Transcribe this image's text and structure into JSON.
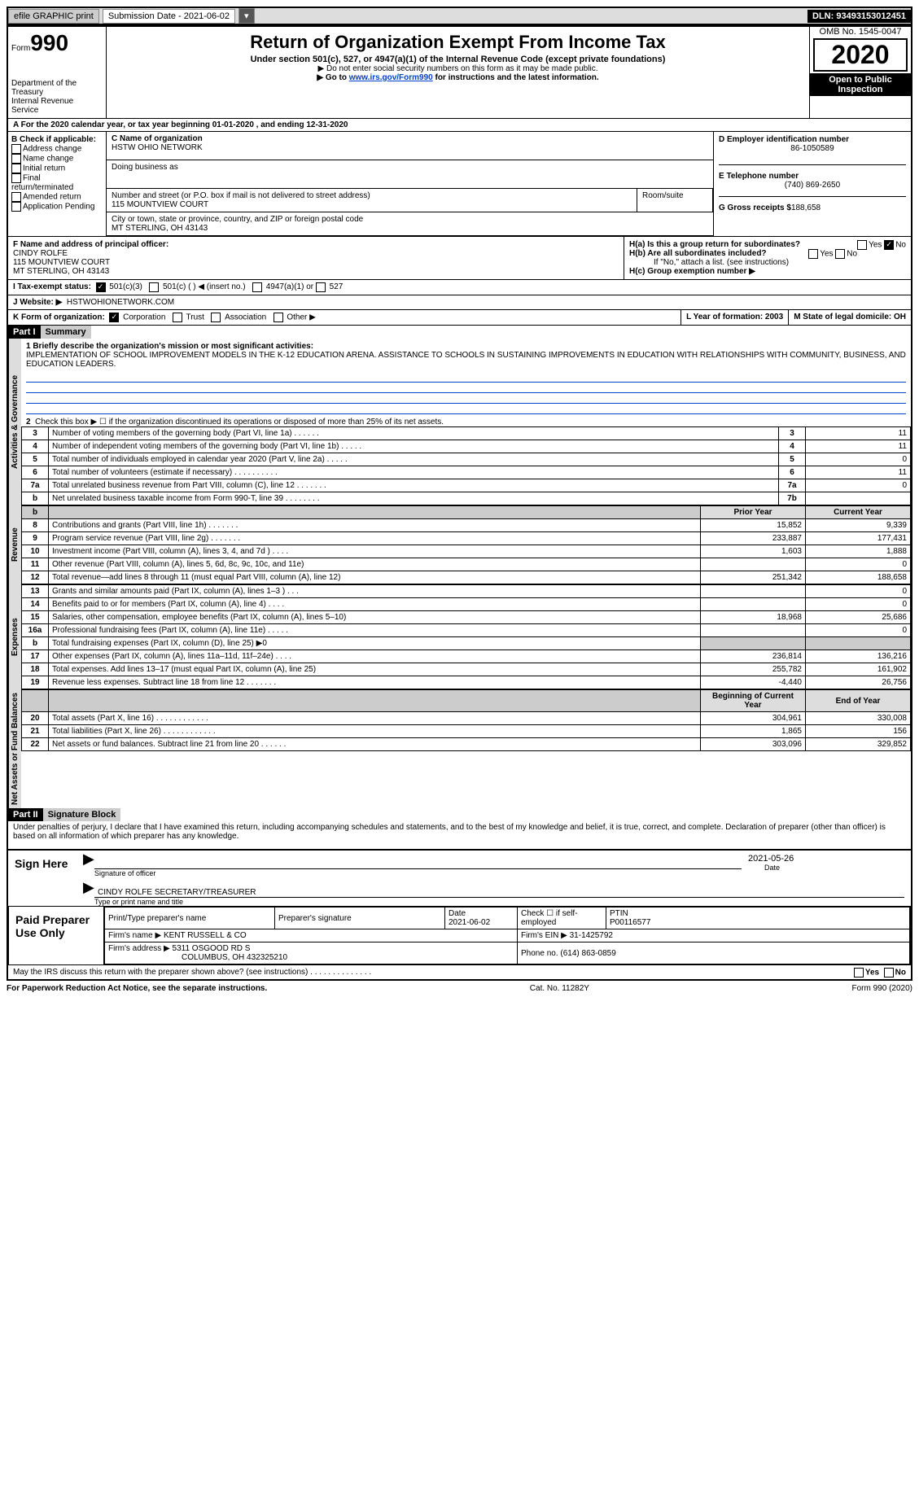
{
  "toolbar": {
    "efile_label": "efile GRAPHIC print",
    "submission_label": "Submission Date - 2021-06-02",
    "dln": "DLN: 93493153012451"
  },
  "header": {
    "form_label": "Form",
    "form_number": "990",
    "title": "Return of Organization Exempt From Income Tax",
    "subtitle": "Under section 501(c), 527, or 4947(a)(1) of the Internal Revenue Code (except private foundations)",
    "note1": "▶ Do not enter social security numbers on this form as it may be made public.",
    "note2_prefix": "▶ Go to ",
    "note2_link": "www.irs.gov/Form990",
    "note2_suffix": " for instructions and the latest information.",
    "dept": "Department of the Treasury\nInternal Revenue Service",
    "omb": "OMB No. 1545-0047",
    "year": "2020",
    "open": "Open to Public Inspection"
  },
  "line_a": "For the 2020 calendar year, or tax year beginning 01-01-2020   , and ending 12-31-2020",
  "section_b": {
    "label": "B Check if applicable:",
    "items": [
      "Address change",
      "Name change",
      "Initial return",
      "Final return/terminated",
      "Amended return",
      "Application pending"
    ],
    "last": "Application Pending"
  },
  "section_c": {
    "name_label": "C Name of organization",
    "name": "HSTW OHIO NETWORK",
    "dba_label": "Doing business as",
    "addr_label": "Number and street (or P.O. box if mail is not delivered to street address)",
    "room_label": "Room/suite",
    "addr": "115 MOUNTVIEW COURT",
    "city_label": "City or town, state or province, country, and ZIP or foreign postal code",
    "city": "MT STERLING, OH  43143"
  },
  "section_d": {
    "label": "D Employer identification number",
    "value": "86-1050589"
  },
  "section_e": {
    "label": "E Telephone number",
    "value": "(740) 869-2650"
  },
  "section_g": {
    "label": "G Gross receipts $",
    "value": "188,658"
  },
  "section_f": {
    "label": "F  Name and address of principal officer:",
    "name": "CINDY ROLFE",
    "addr1": "115 MOUNTVIEW COURT",
    "addr2": "MT STERLING, OH  43143"
  },
  "section_h": {
    "ha": "H(a)  Is this a group return for subordinates?",
    "hb": "H(b)  Are all subordinates included?",
    "hb_note": "If \"No,\" attach a list. (see instructions)",
    "hc": "H(c)  Group exemption number ▶",
    "yes": "Yes",
    "no": "No"
  },
  "section_i": {
    "label": "I    Tax-exempt status:",
    "opts": [
      "501(c)(3)",
      "501(c) (  ) ◀ (insert no.)",
      "4947(a)(1) or",
      "527"
    ]
  },
  "section_j": {
    "label": "J   Website: ▶",
    "value": "HSTWOHIONETWORK.COM"
  },
  "section_k": {
    "label": "K Form of organization:",
    "opts": [
      "Corporation",
      "Trust",
      "Association",
      "Other ▶"
    ]
  },
  "section_l": {
    "label": "L Year of formation: 2003"
  },
  "section_m": {
    "label": "M State of legal domicile: OH"
  },
  "part1": {
    "hdr": "Part I",
    "title": "Summary",
    "q1": "1  Briefly describe the organization's mission or most significant activities:",
    "mission": "IMPLEMENTATION OF SCHOOL IMPROVEMENT MODELS IN THE K-12 EDUCATION ARENA. ASSISTANCE TO SCHOOLS IN SUSTAINING IMPROVEMENTS IN EDUCATION WITH RELATIONSHIPS WITH COMMUNITY, BUSINESS, AND EDUCATION LEADERS.",
    "q2": "Check this box ▶ ☐  if the organization discontinued its operations or disposed of more than 25% of its net assets.",
    "sections": {
      "gov": "Activities & Governance",
      "rev": "Revenue",
      "exp": "Expenses",
      "na": "Net Assets or Fund Balances"
    },
    "col_prior": "Prior Year",
    "col_curr": "Current Year",
    "col_beg": "Beginning of Current Year",
    "col_end": "End of Year",
    "lines": [
      {
        "n": "3",
        "d": "Number of voting members of the governing body (Part VI, line 1a)  .   .   .   .   .   .",
        "ln": "3",
        "v": "11"
      },
      {
        "n": "4",
        "d": "Number of independent voting members of the governing body (Part VI, line 1b)  .   .   .   .   .",
        "ln": "4",
        "v": "11"
      },
      {
        "n": "5",
        "d": "Total number of individuals employed in calendar year 2020 (Part V, line 2a)  .   .   .   .   .",
        "ln": "5",
        "v": "0"
      },
      {
        "n": "6",
        "d": "Total number of volunteers (estimate if necessary)  .   .   .   .   .   .   .   .   .   .",
        "ln": "6",
        "v": "11"
      },
      {
        "n": "7a",
        "d": "Total unrelated business revenue from Part VIII, column (C), line 12  .   .   .   .   .   .   .",
        "ln": "7a",
        "v": "0"
      },
      {
        "n": "b",
        "d": "Net unrelated business taxable income from Form 990-T, line 39  .   .   .   .   .   .   .   .",
        "ln": "7b",
        "v": ""
      }
    ],
    "rev_lines": [
      {
        "n": "8",
        "d": "Contributions and grants (Part VIII, line 1h)  .   .   .   .   .   .   .",
        "p": "15,852",
        "c": "9,339"
      },
      {
        "n": "9",
        "d": "Program service revenue (Part VIII, line 2g)  .   .   .   .   .   .   .",
        "p": "233,887",
        "c": "177,431"
      },
      {
        "n": "10",
        "d": "Investment income (Part VIII, column (A), lines 3, 4, and 7d )  .   .   .   .",
        "p": "1,603",
        "c": "1,888"
      },
      {
        "n": "11",
        "d": "Other revenue (Part VIII, column (A), lines 5, 6d, 8c, 9c, 10c, and 11e)",
        "p": "",
        "c": "0"
      },
      {
        "n": "12",
        "d": "Total revenue—add lines 8 through 11 (must equal Part VIII, column (A), line 12)",
        "p": "251,342",
        "c": "188,658"
      }
    ],
    "exp_lines": [
      {
        "n": "13",
        "d": "Grants and similar amounts paid (Part IX, column (A), lines 1–3 )  .   .   .",
        "p": "",
        "c": "0"
      },
      {
        "n": "14",
        "d": "Benefits paid to or for members (Part IX, column (A), line 4)  .   .   .   .",
        "p": "",
        "c": "0"
      },
      {
        "n": "15",
        "d": "Salaries, other compensation, employee benefits (Part IX, column (A), lines 5–10)",
        "p": "18,968",
        "c": "25,686"
      },
      {
        "n": "16a",
        "d": "Professional fundraising fees (Part IX, column (A), line 11e)  .   .   .   .   .",
        "p": "",
        "c": "0"
      },
      {
        "n": "b",
        "d": "Total fundraising expenses (Part IX, column (D), line 25) ▶0",
        "p": "shade",
        "c": "shade"
      },
      {
        "n": "17",
        "d": "Other expenses (Part IX, column (A), lines 11a–11d, 11f–24e)  .   .   .   .",
        "p": "236,814",
        "c": "136,216"
      },
      {
        "n": "18",
        "d": "Total expenses. Add lines 13–17 (must equal Part IX, column (A), line 25)",
        "p": "255,782",
        "c": "161,902"
      },
      {
        "n": "19",
        "d": "Revenue less expenses. Subtract line 18 from line 12  .   .   .   .   .   .   .",
        "p": "-4,440",
        "c": "26,756"
      }
    ],
    "na_lines": [
      {
        "n": "20",
        "d": "Total assets (Part X, line 16)  .   .   .   .   .   .   .   .   .   .   .   .",
        "p": "304,961",
        "c": "330,008"
      },
      {
        "n": "21",
        "d": "Total liabilities (Part X, line 26)  .   .   .   .   .   .   .   .   .   .   .   .",
        "p": "1,865",
        "c": "156"
      },
      {
        "n": "22",
        "d": "Net assets or fund balances. Subtract line 21 from line 20  .   .   .   .   .   .",
        "p": "303,096",
        "c": "329,852"
      }
    ]
  },
  "part2": {
    "hdr": "Part II",
    "title": "Signature Block",
    "decl": "Under penalties of perjury, I declare that I have examined this return, including accompanying schedules and statements, and to the best of my knowledge and belief, it is true, correct, and complete. Declaration of preparer (other than officer) is based on all information of which preparer has any knowledge.",
    "sign_here": "Sign Here",
    "sig_officer": "Signature of officer",
    "date_label": "Date",
    "date": "2021-05-26",
    "name": "CINDY ROLFE SECRETARY/TREASURER",
    "name_label": "Type or print name and title"
  },
  "preparer": {
    "title": "Paid Preparer Use Only",
    "print_label": "Print/Type preparer's name",
    "sig_label": "Preparer's signature",
    "date_label": "Date",
    "date": "2021-06-02",
    "check_label": "Check ☐ if self-employed",
    "ptin_label": "PTIN",
    "ptin": "P00116577",
    "firm_label": "Firm's name   ▶",
    "firm": "KENT RUSSELL & CO",
    "ein_label": "Firm's EIN ▶",
    "ein": "31-1425792",
    "addr_label": "Firm's address ▶",
    "addr": "5311 OSGOOD RD S",
    "city": "COLUMBUS, OH  432325210",
    "phone_label": "Phone no.",
    "phone": "(614) 863-0859"
  },
  "discuss": "May the IRS discuss this return with the preparer shown above? (see instructions)   .    .    .    .    .    .    .    .    .    .    .    .    .    .",
  "footer": {
    "left": "For Paperwork Reduction Act Notice, see the separate instructions.",
    "mid": "Cat. No. 11282Y",
    "right": "Form 990 (2020)"
  }
}
